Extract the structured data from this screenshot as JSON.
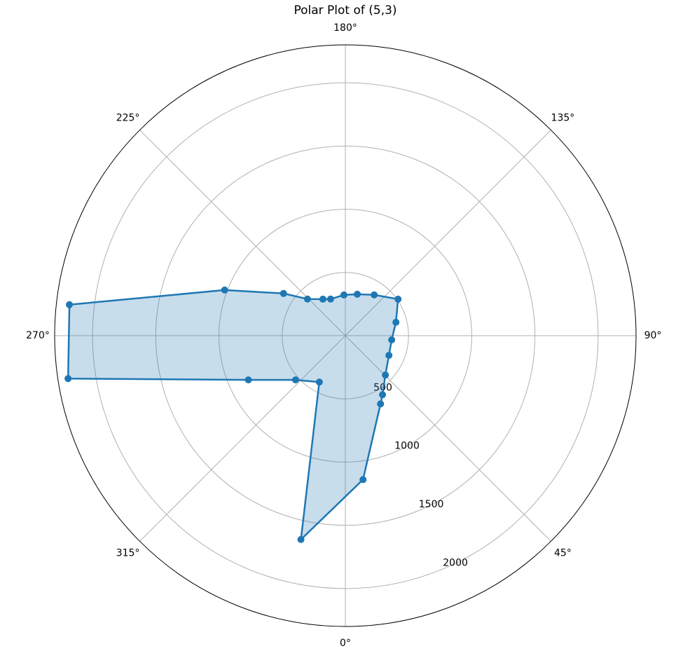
{
  "chart_data": {
    "type": "polar",
    "title": "Polar Plot of (5,3)",
    "x": [
      7.0,
      27.3,
      32.2,
      45.5,
      65.7,
      84.8,
      104.8,
      124.7,
      144.7,
      163.9,
      182,
      202,
      211.6,
      226,
      235.7,
      249.3,
      263.6,
      278.8,
      294.5,
      311.6,
      330.7,
      347.7
    ],
    "values": [
      1147,
      607,
      552,
      444,
      378,
      368,
      414,
      507,
      395,
      341,
      322,
      312,
      339,
      417,
      592,
      1021,
      2197,
      2220,
      843,
      527,
      421,
      1650
    ],
    "color": "#1f77b4",
    "xticks": [
      {
        "value": 0,
        "label": "0°"
      },
      {
        "value": 45,
        "label": "45°"
      },
      {
        "value": 90,
        "label": "90°"
      },
      {
        "value": 135,
        "label": "135°"
      },
      {
        "value": 180,
        "label": "180°"
      },
      {
        "value": 225,
        "label": "225°"
      },
      {
        "value": 270,
        "label": "270°"
      },
      {
        "value": 315,
        "label": "315°"
      }
    ],
    "ylim": [
      0,
      2300
    ],
    "yticks": [
      500,
      1000,
      1500,
      2000
    ],
    "grid": true
  }
}
